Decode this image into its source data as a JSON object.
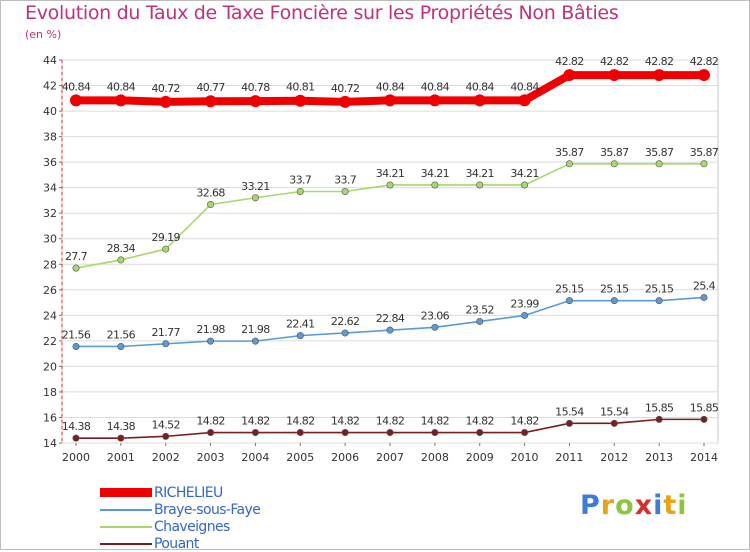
{
  "header": {
    "title": "Evolution du Taux de Taxe Foncière sur les Propriétés Non Bâties",
    "unit": "(en %)"
  },
  "chart_data": {
    "type": "line",
    "title": "Evolution du Taux de Taxe Foncière sur les Propriétés Non Bâties",
    "ylabel": "(en %)",
    "xlabel": "",
    "x": [
      "2000",
      "2001",
      "2002",
      "2003",
      "2004",
      "2005",
      "2006",
      "2007",
      "2008",
      "2009",
      "2010",
      "2011",
      "2012",
      "2013",
      "2014"
    ],
    "ylim": [
      14,
      44
    ],
    "yticks": [
      14,
      16,
      18,
      20,
      22,
      24,
      26,
      28,
      30,
      32,
      34,
      36,
      38,
      40,
      42,
      44
    ],
    "grid": "horizontal",
    "legend_position": "bottom-left",
    "series": [
      {
        "name": "RICHELIEU",
        "color": "#ee0000",
        "values": [
          40.84,
          40.84,
          40.72,
          40.77,
          40.78,
          40.81,
          40.72,
          40.84,
          40.84,
          40.84,
          40.84,
          42.82,
          42.82,
          42.82,
          42.82
        ],
        "labels": [
          "40.84",
          "40.84",
          "40.72",
          "40.77",
          "40.78",
          "40.81",
          "40.72",
          "40.84",
          "40.84",
          "40.84",
          "40.84",
          "42.82",
          "42.82",
          "42.82",
          "42.82"
        ]
      },
      {
        "name": "Braye-sous-Faye",
        "color": "#5b9bd5",
        "values": [
          21.56,
          21.56,
          21.77,
          21.98,
          21.98,
          22.41,
          22.62,
          22.84,
          23.06,
          23.52,
          23.99,
          25.15,
          25.15,
          25.15,
          25.4
        ],
        "labels": [
          "21.56",
          "21.56",
          "21.77",
          "21.98",
          "21.98",
          "22.41",
          "22.62",
          "22.84",
          "23.06",
          "23.52",
          "23.99",
          "25.15",
          "25.15",
          "25.15",
          "25.4"
        ]
      },
      {
        "name": "Chaveignes",
        "color": "#a6d96a",
        "values": [
          27.7,
          28.34,
          29.19,
          32.68,
          33.21,
          33.7,
          33.7,
          34.21,
          34.21,
          34.21,
          34.21,
          35.87,
          35.87,
          35.87,
          35.87
        ],
        "labels": [
          "27.7",
          "28.34",
          "29.19",
          "32.68",
          "33.21",
          "33.7",
          "33.7",
          "34.21",
          "34.21",
          "34.21",
          "34.21",
          "35.87",
          "35.87",
          "35.87",
          "35.87"
        ]
      },
      {
        "name": "Pouant",
        "color": "#7a1f1f",
        "values": [
          14.38,
          14.38,
          14.52,
          14.82,
          14.82,
          14.82,
          14.82,
          14.82,
          14.82,
          14.82,
          14.82,
          15.54,
          15.54,
          15.85,
          15.85
        ],
        "labels": [
          "14.38",
          "14.38",
          "14.52",
          "14.82",
          "14.82",
          "14.82",
          "14.82",
          "14.82",
          "14.82",
          "14.82",
          "14.82",
          "15.54",
          "15.54",
          "15.85",
          "15.85"
        ]
      }
    ]
  },
  "legend": {
    "items": [
      {
        "label": "RICHELIEU",
        "color": "#ee0000",
        "text_color": "#3366cc"
      },
      {
        "label": "Braye-sous-Faye",
        "color": "#5b9bd5",
        "text_color": "#3366cc"
      },
      {
        "label": "Chaveignes",
        "color": "#a6d96a",
        "text_color": "#3366cc"
      },
      {
        "label": "Pouant",
        "color": "#7a1f1f",
        "text_color": "#3366cc"
      }
    ]
  },
  "logo": {
    "letters": [
      "P",
      "r",
      "o",
      "x",
      "i",
      "t",
      "i"
    ],
    "colors": [
      "#3b7dd8",
      "#e8a317",
      "#8cc63f",
      "#d32f2f",
      "#3b7dd8",
      "#e8a317",
      "#8cc63f"
    ]
  }
}
